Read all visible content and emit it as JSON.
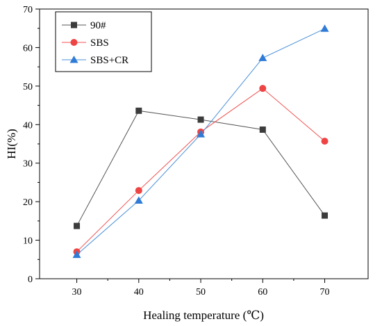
{
  "chart_data": {
    "type": "line",
    "title": "",
    "xlabel": "Healing temperature (℃)",
    "ylabel": "HI(%)",
    "x": [
      30,
      40,
      50,
      60,
      70
    ],
    "xticks": [
      30,
      40,
      50,
      60,
      70
    ],
    "yticks": [
      0,
      10,
      20,
      30,
      40,
      50,
      60,
      70
    ],
    "xlim": [
      24,
      77
    ],
    "ylim": [
      0,
      70
    ],
    "grid": false,
    "legend_position": "top-left",
    "series": [
      {
        "name": "90#",
        "marker": "square",
        "color": "#555555",
        "marker_color": "#3c3c3c",
        "values": [
          13.7,
          43.6,
          41.3,
          38.7,
          16.4
        ]
      },
      {
        "name": "SBS",
        "marker": "circle",
        "color": "#f05050",
        "marker_color": "#ee4444",
        "values": [
          7.0,
          22.9,
          38.1,
          49.4,
          35.7
        ]
      },
      {
        "name": "SBS+CR",
        "marker": "triangle",
        "color": "#4a90d9",
        "marker_color": "#2f7bd6",
        "values": [
          6.2,
          20.3,
          37.5,
          57.3,
          64.9
        ]
      }
    ]
  }
}
